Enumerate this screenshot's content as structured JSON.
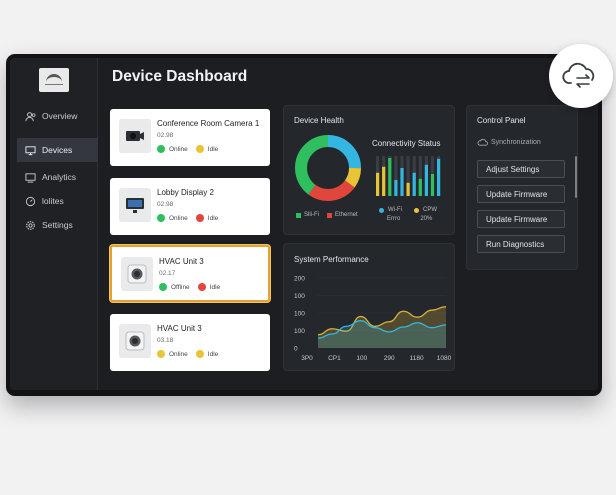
{
  "page": {
    "title": "Device Dashboard"
  },
  "sidebar": {
    "items": [
      {
        "label": "Overview",
        "icon": "users-icon"
      },
      {
        "label": "Devices",
        "icon": "monitor-icon",
        "active": true
      },
      {
        "label": "Analytics",
        "icon": "display-icon"
      },
      {
        "label": "lolites",
        "icon": "gauge-icon"
      },
      {
        "label": "Settings",
        "icon": "gear-icon"
      }
    ]
  },
  "devices": [
    {
      "name": "Conference Room Camera 1",
      "id": "02.98",
      "status1": "Online",
      "status1_color": "#2fbf5e",
      "status2": "Idle",
      "status2_color": "#e9c437",
      "icon": "camera-icon"
    },
    {
      "name": "Lobby Display 2",
      "id": "02.98",
      "status1": "Online",
      "status1_color": "#2fbf5e",
      "status2": "Idle",
      "status2_color": "#e0463b",
      "icon": "display-device-icon"
    },
    {
      "name": "HVAC Unit 3",
      "id": "02.17",
      "status1": "Offline",
      "status1_color": "#2fbf5e",
      "status2": "Idle",
      "status2_color": "#e0463b",
      "icon": "hvac-icon",
      "selected": true
    },
    {
      "name": "HVAC Unit 3",
      "id": "03.18",
      "status1": "Online",
      "status1_color": "#e9c437",
      "status2": "Idle",
      "status2_color": "#e9c437",
      "icon": "hvac-icon"
    }
  ],
  "device_health": {
    "title": "Device Health",
    "legend": [
      {
        "label": "Slli-Fi",
        "color": "#2fbf5e"
      },
      {
        "label": "Ethernet",
        "color": "#e0463b"
      }
    ],
    "donut": [
      {
        "value": 25,
        "color": "#33b6e0"
      },
      {
        "value": 10,
        "color": "#e9c437"
      },
      {
        "value": 25,
        "color": "#e0463b"
      },
      {
        "value": 40,
        "color": "#2fbf5e"
      }
    ],
    "connectivity": {
      "title": "Connectivity Status",
      "bars": [
        {
          "value": 0.58,
          "color": "#e9c437"
        },
        {
          "value": 0.73,
          "color": "#e9c437"
        },
        {
          "value": 0.95,
          "color": "#2fbf5e"
        },
        {
          "value": 0.4,
          "color": "#33b6e0"
        },
        {
          "value": 0.7,
          "color": "#33b6e0"
        },
        {
          "value": 0.33,
          "color": "#e9c437"
        },
        {
          "value": 0.58,
          "color": "#33b6e0"
        },
        {
          "value": 0.43,
          "color": "#2fbf5e"
        },
        {
          "value": 0.78,
          "color": "#33b6e0"
        },
        {
          "value": 0.55,
          "color": "#2fbf5e"
        },
        {
          "value": 0.93,
          "color": "#33b6e0"
        }
      ],
      "legend": [
        {
          "label": "Wi-Fi",
          "sub": "Errro",
          "color": "#33b6e0"
        },
        {
          "label": "CPW",
          "sub": "20%",
          "color": "#e9c437"
        }
      ]
    }
  },
  "system_performance": {
    "title": "System Performance"
  },
  "chart_data": {
    "type": "area",
    "title": "System Performance",
    "y_ticks": [
      "200",
      "100",
      "100",
      "100",
      "0"
    ],
    "x_ticks": [
      "3P0",
      "CP1",
      "100",
      "290",
      "1180",
      "1080"
    ],
    "series": [
      {
        "color": "#d9b23a",
        "values": [
          38,
          55,
          48,
          90,
          62,
          75,
          105,
          88,
          108,
          118
        ]
      },
      {
        "color": "#33b6e0",
        "values": [
          28,
          40,
          62,
          78,
          58,
          46,
          60,
          72,
          58,
          66
        ]
      }
    ],
    "ylim": [
      0,
      200
    ]
  },
  "control_panel": {
    "title": "Control Panel",
    "sync_label": "Synchronization",
    "buttons": [
      "Adjust Settings",
      "Update Firmware",
      "Update Firmware",
      "Run Diagnostics"
    ]
  },
  "badge": {
    "icon": "cloud-sync-icon"
  }
}
